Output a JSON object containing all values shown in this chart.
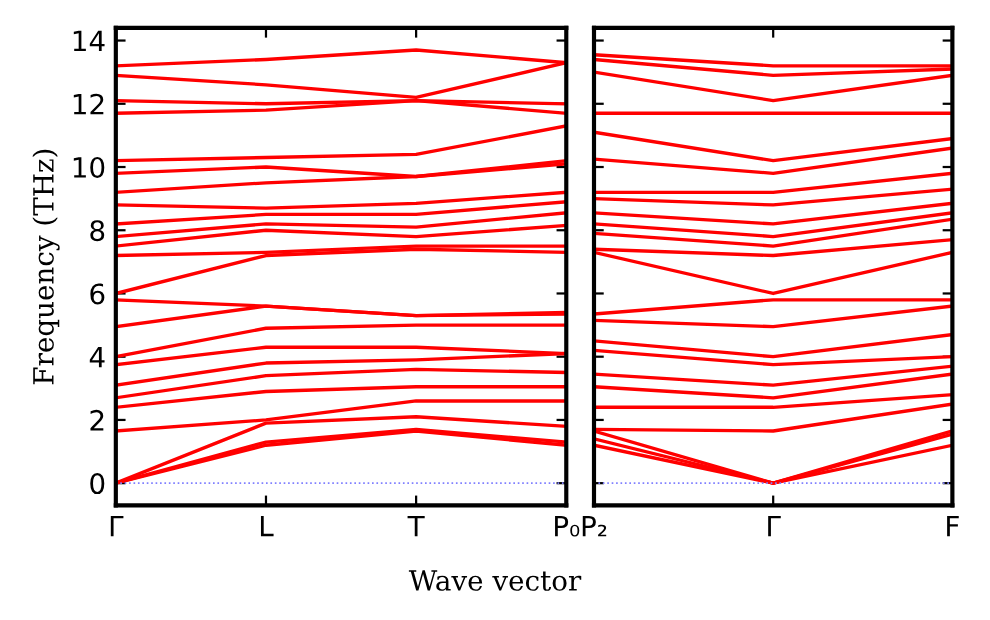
{
  "chart_data": [
    {
      "type": "line",
      "ylabel": "Frequency (THz)",
      "xlabel": "Wave vector",
      "categories": [
        "Γ",
        "L",
        "T",
        "P₀"
      ],
      "ylim": [
        -0.7,
        14.4
      ],
      "yticks": [
        0,
        2,
        4,
        6,
        8,
        10,
        12,
        14
      ],
      "grid": false,
      "line_style": "solid",
      "marker": "none",
      "ref_lines": [
        {
          "axis": "y",
          "value": 0,
          "label": null,
          "color": "#8080ff",
          "line_style": "dotted"
        }
      ],
      "series": [
        {
          "color": "#ff0000",
          "values": [
            0,
            1.2,
            1.65,
            1.2
          ]
        },
        {
          "color": "#ff0000",
          "values": [
            0,
            1.3,
            1.7,
            1.3
          ]
        },
        {
          "color": "#ff0000",
          "values": [
            0,
            1.9,
            2.1,
            1.8
          ]
        },
        {
          "color": "#ff0000",
          "values": [
            1.65,
            2.0,
            2.6,
            2.6
          ]
        },
        {
          "color": "#ff0000",
          "values": [
            2.4,
            2.9,
            3.05,
            3.05
          ]
        },
        {
          "color": "#ff0000",
          "values": [
            2.7,
            3.4,
            3.6,
            3.5
          ]
        },
        {
          "color": "#ff0000",
          "values": [
            3.1,
            3.8,
            3.9,
            4.1
          ]
        },
        {
          "color": "#ff0000",
          "values": [
            3.75,
            4.3,
            4.3,
            4.1
          ]
        },
        {
          "color": "#ff0000",
          "values": [
            4.0,
            4.9,
            5.0,
            5.0
          ]
        },
        {
          "color": "#ff0000",
          "values": [
            4.95,
            5.6,
            5.3,
            5.35
          ]
        },
        {
          "color": "#ff0000",
          "values": [
            5.8,
            5.6,
            5.3,
            5.4
          ]
        },
        {
          "color": "#ff0000",
          "values": [
            6.0,
            7.2,
            7.4,
            7.3
          ]
        },
        {
          "color": "#ff0000",
          "values": [
            7.2,
            7.3,
            7.5,
            7.5
          ]
        },
        {
          "color": "#ff0000",
          "values": [
            7.5,
            8.0,
            7.8,
            8.15
          ]
        },
        {
          "color": "#ff0000",
          "values": [
            7.8,
            8.2,
            8.1,
            8.55
          ]
        },
        {
          "color": "#ff0000",
          "values": [
            8.2,
            8.5,
            8.5,
            8.9
          ]
        },
        {
          "color": "#ff0000",
          "values": [
            8.8,
            8.7,
            8.85,
            9.2
          ]
        },
        {
          "color": "#ff0000",
          "values": [
            9.2,
            9.5,
            9.7,
            10.1
          ]
        },
        {
          "color": "#ff0000",
          "values": [
            9.8,
            10.0,
            9.7,
            10.2
          ]
        },
        {
          "color": "#ff0000",
          "values": [
            10.2,
            10.3,
            10.4,
            11.3
          ]
        },
        {
          "color": "#ff0000",
          "values": [
            11.7,
            11.8,
            12.1,
            11.7
          ]
        },
        {
          "color": "#ff0000",
          "values": [
            12.1,
            12.0,
            12.1,
            12.0
          ]
        },
        {
          "color": "#ff0000",
          "values": [
            12.9,
            12.6,
            12.2,
            13.3
          ]
        },
        {
          "color": "#ff0000",
          "values": [
            13.2,
            13.4,
            13.7,
            13.3
          ]
        }
      ]
    },
    {
      "type": "line",
      "categories": [
        "P₂",
        "Γ",
        "F"
      ],
      "ylim": [
        -0.7,
        14.4
      ],
      "yticks": [
        0,
        2,
        4,
        6,
        8,
        10,
        12,
        14
      ],
      "tick_labels": "x",
      "grid": false,
      "line_style": "solid",
      "marker": "none",
      "ref_lines": [
        {
          "axis": "y",
          "value": 0,
          "label": null,
          "color": "#8080ff",
          "line_style": "dotted"
        }
      ],
      "series": [
        {
          "color": "#ff0000",
          "values": [
            1.2,
            0,
            1.2
          ]
        },
        {
          "color": "#ff0000",
          "values": [
            1.4,
            0,
            1.55
          ]
        },
        {
          "color": "#ff0000",
          "values": [
            1.65,
            0,
            1.65
          ]
        },
        {
          "color": "#ff0000",
          "values": [
            1.7,
            1.65,
            2.5
          ]
        },
        {
          "color": "#ff0000",
          "values": [
            2.4,
            2.4,
            2.8
          ]
        },
        {
          "color": "#ff0000",
          "values": [
            3.05,
            2.7,
            3.45
          ]
        },
        {
          "color": "#ff0000",
          "values": [
            3.45,
            3.1,
            3.7
          ]
        },
        {
          "color": "#ff0000",
          "values": [
            4.2,
            3.75,
            4.0
          ]
        },
        {
          "color": "#ff0000",
          "values": [
            4.5,
            4.0,
            4.7
          ]
        },
        {
          "color": "#ff0000",
          "values": [
            5.15,
            4.95,
            5.6
          ]
        },
        {
          "color": "#ff0000",
          "values": [
            5.35,
            5.8,
            5.8
          ]
        },
        {
          "color": "#ff0000",
          "values": [
            7.3,
            6.0,
            7.3
          ]
        },
        {
          "color": "#ff0000",
          "values": [
            7.4,
            7.2,
            7.7
          ]
        },
        {
          "color": "#ff0000",
          "values": [
            7.9,
            7.5,
            8.35
          ]
        },
        {
          "color": "#ff0000",
          "values": [
            8.2,
            7.8,
            8.55
          ]
        },
        {
          "color": "#ff0000",
          "values": [
            8.55,
            8.2,
            8.85
          ]
        },
        {
          "color": "#ff0000",
          "values": [
            9.0,
            8.8,
            9.3
          ]
        },
        {
          "color": "#ff0000",
          "values": [
            9.2,
            9.2,
            9.8
          ]
        },
        {
          "color": "#ff0000",
          "values": [
            10.25,
            9.8,
            10.6
          ]
        },
        {
          "color": "#ff0000",
          "values": [
            11.1,
            10.2,
            10.9
          ]
        },
        {
          "color": "#ff0000",
          "values": [
            11.7,
            11.7,
            11.7
          ]
        },
        {
          "color": "#ff0000",
          "values": [
            13.0,
            12.1,
            12.9
          ]
        },
        {
          "color": "#ff0000",
          "values": [
            13.4,
            12.9,
            13.1
          ]
        },
        {
          "color": "#ff0000",
          "values": [
            13.55,
            13.2,
            13.2
          ]
        }
      ]
    }
  ]
}
